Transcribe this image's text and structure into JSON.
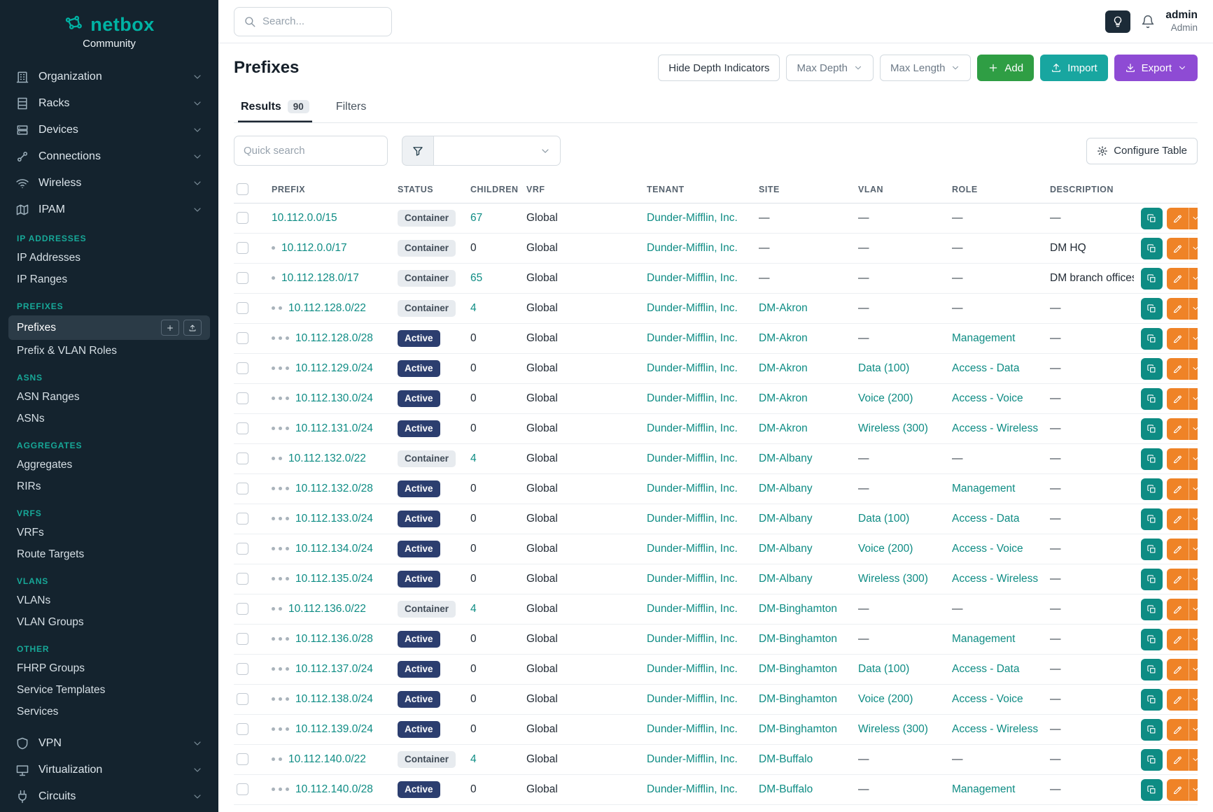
{
  "brand": {
    "name": "netbox",
    "subtitle": "Community"
  },
  "topbar": {
    "search_placeholder": "Search...",
    "user_name": "admin",
    "user_role": "Admin"
  },
  "sidebar": {
    "top_groups": [
      {
        "label": "Organization",
        "icon": "organization-icon"
      },
      {
        "label": "Racks",
        "icon": "racks-icon"
      },
      {
        "label": "Devices",
        "icon": "devices-icon"
      },
      {
        "label": "Connections",
        "icon": "connections-icon"
      },
      {
        "label": "Wireless",
        "icon": "wireless-icon"
      },
      {
        "label": "IPAM",
        "icon": "ipam-icon"
      }
    ],
    "sections": [
      {
        "title": "IP ADDRESSES",
        "items": [
          {
            "label": "IP Addresses",
            "active": false
          },
          {
            "label": "IP Ranges",
            "active": false
          }
        ]
      },
      {
        "title": "PREFIXES",
        "items": [
          {
            "label": "Prefixes",
            "active": true
          },
          {
            "label": "Prefix & VLAN Roles",
            "active": false
          }
        ]
      },
      {
        "title": "ASNS",
        "items": [
          {
            "label": "ASN Ranges",
            "active": false
          },
          {
            "label": "ASNs",
            "active": false
          }
        ]
      },
      {
        "title": "AGGREGATES",
        "items": [
          {
            "label": "Aggregates",
            "active": false
          },
          {
            "label": "RIRs",
            "active": false
          }
        ]
      },
      {
        "title": "VRFS",
        "items": [
          {
            "label": "VRFs",
            "active": false
          },
          {
            "label": "Route Targets",
            "active": false
          }
        ]
      },
      {
        "title": "VLANS",
        "items": [
          {
            "label": "VLANs",
            "active": false
          },
          {
            "label": "VLAN Groups",
            "active": false
          }
        ]
      },
      {
        "title": "OTHER",
        "items": [
          {
            "label": "FHRP Groups",
            "active": false
          },
          {
            "label": "Service Templates",
            "active": false
          },
          {
            "label": "Services",
            "active": false
          }
        ]
      }
    ],
    "bottom_groups": [
      {
        "label": "VPN",
        "icon": "vpn-icon"
      },
      {
        "label": "Virtualization",
        "icon": "virtualization-icon"
      },
      {
        "label": "Circuits",
        "icon": "circuits-icon"
      }
    ]
  },
  "page": {
    "title": "Prefixes",
    "toolbar": {
      "hide_depth_label": "Hide Depth Indicators",
      "max_depth_label": "Max Depth",
      "max_length_label": "Max Length",
      "add_label": "Add",
      "import_label": "Import",
      "export_label": "Export"
    },
    "tabs": [
      {
        "label": "Results",
        "badge": "90",
        "active": true
      },
      {
        "label": "Filters",
        "active": false
      }
    ],
    "quick_search_placeholder": "Quick search",
    "configure_table_label": "Configure Table"
  },
  "table": {
    "columns": [
      "PREFIX",
      "STATUS",
      "CHILDREN",
      "VRF",
      "TENANT",
      "SITE",
      "VLAN",
      "ROLE",
      "DESCRIPTION"
    ],
    "rows": [
      {
        "depth": 0,
        "prefix": "10.112.0.0/15",
        "status": "Container",
        "children": "67",
        "vrf": "Global",
        "tenant": "Dunder-Mifflin, Inc.",
        "site": "—",
        "vlan": "—",
        "role": "—",
        "description": "—"
      },
      {
        "depth": 1,
        "prefix": "10.112.0.0/17",
        "status": "Container",
        "children": "0",
        "vrf": "Global",
        "tenant": "Dunder-Mifflin, Inc.",
        "site": "—",
        "vlan": "—",
        "role": "—",
        "description": "DM HQ"
      },
      {
        "depth": 1,
        "prefix": "10.112.128.0/17",
        "status": "Container",
        "children": "65",
        "vrf": "Global",
        "tenant": "Dunder-Mifflin, Inc.",
        "site": "—",
        "vlan": "—",
        "role": "—",
        "description": "DM branch offices"
      },
      {
        "depth": 2,
        "prefix": "10.112.128.0/22",
        "status": "Container",
        "children": "4",
        "vrf": "Global",
        "tenant": "Dunder-Mifflin, Inc.",
        "site": "DM-Akron",
        "vlan": "—",
        "role": "—",
        "description": "—"
      },
      {
        "depth": 3,
        "prefix": "10.112.128.0/28",
        "status": "Active",
        "children": "0",
        "vrf": "Global",
        "tenant": "Dunder-Mifflin, Inc.",
        "site": "DM-Akron",
        "vlan": "—",
        "role": "Management",
        "description": "—"
      },
      {
        "depth": 3,
        "prefix": "10.112.129.0/24",
        "status": "Active",
        "children": "0",
        "vrf": "Global",
        "tenant": "Dunder-Mifflin, Inc.",
        "site": "DM-Akron",
        "vlan": "Data (100)",
        "role": "Access - Data",
        "description": "—"
      },
      {
        "depth": 3,
        "prefix": "10.112.130.0/24",
        "status": "Active",
        "children": "0",
        "vrf": "Global",
        "tenant": "Dunder-Mifflin, Inc.",
        "site": "DM-Akron",
        "vlan": "Voice (200)",
        "role": "Access - Voice",
        "description": "—"
      },
      {
        "depth": 3,
        "prefix": "10.112.131.0/24",
        "status": "Active",
        "children": "0",
        "vrf": "Global",
        "tenant": "Dunder-Mifflin, Inc.",
        "site": "DM-Akron",
        "vlan": "Wireless (300)",
        "role": "Access - Wireless",
        "description": "—"
      },
      {
        "depth": 2,
        "prefix": "10.112.132.0/22",
        "status": "Container",
        "children": "4",
        "vrf": "Global",
        "tenant": "Dunder-Mifflin, Inc.",
        "site": "DM-Albany",
        "vlan": "—",
        "role": "—",
        "description": "—"
      },
      {
        "depth": 3,
        "prefix": "10.112.132.0/28",
        "status": "Active",
        "children": "0",
        "vrf": "Global",
        "tenant": "Dunder-Mifflin, Inc.",
        "site": "DM-Albany",
        "vlan": "—",
        "role": "Management",
        "description": "—"
      },
      {
        "depth": 3,
        "prefix": "10.112.133.0/24",
        "status": "Active",
        "children": "0",
        "vrf": "Global",
        "tenant": "Dunder-Mifflin, Inc.",
        "site": "DM-Albany",
        "vlan": "Data (100)",
        "role": "Access - Data",
        "description": "—"
      },
      {
        "depth": 3,
        "prefix": "10.112.134.0/24",
        "status": "Active",
        "children": "0",
        "vrf": "Global",
        "tenant": "Dunder-Mifflin, Inc.",
        "site": "DM-Albany",
        "vlan": "Voice (200)",
        "role": "Access - Voice",
        "description": "—"
      },
      {
        "depth": 3,
        "prefix": "10.112.135.0/24",
        "status": "Active",
        "children": "0",
        "vrf": "Global",
        "tenant": "Dunder-Mifflin, Inc.",
        "site": "DM-Albany",
        "vlan": "Wireless (300)",
        "role": "Access - Wireless",
        "description": "—"
      },
      {
        "depth": 2,
        "prefix": "10.112.136.0/22",
        "status": "Container",
        "children": "4",
        "vrf": "Global",
        "tenant": "Dunder-Mifflin, Inc.",
        "site": "DM-Binghamton",
        "vlan": "—",
        "role": "—",
        "description": "—"
      },
      {
        "depth": 3,
        "prefix": "10.112.136.0/28",
        "status": "Active",
        "children": "0",
        "vrf": "Global",
        "tenant": "Dunder-Mifflin, Inc.",
        "site": "DM-Binghamton",
        "vlan": "—",
        "role": "Management",
        "description": "—"
      },
      {
        "depth": 3,
        "prefix": "10.112.137.0/24",
        "status": "Active",
        "children": "0",
        "vrf": "Global",
        "tenant": "Dunder-Mifflin, Inc.",
        "site": "DM-Binghamton",
        "vlan": "Data (100)",
        "role": "Access - Data",
        "description": "—"
      },
      {
        "depth": 3,
        "prefix": "10.112.138.0/24",
        "status": "Active",
        "children": "0",
        "vrf": "Global",
        "tenant": "Dunder-Mifflin, Inc.",
        "site": "DM-Binghamton",
        "vlan": "Voice (200)",
        "role": "Access - Voice",
        "description": "—"
      },
      {
        "depth": 3,
        "prefix": "10.112.139.0/24",
        "status": "Active",
        "children": "0",
        "vrf": "Global",
        "tenant": "Dunder-Mifflin, Inc.",
        "site": "DM-Binghamton",
        "vlan": "Wireless (300)",
        "role": "Access - Wireless",
        "description": "—"
      },
      {
        "depth": 2,
        "prefix": "10.112.140.0/22",
        "status": "Container",
        "children": "4",
        "vrf": "Global",
        "tenant": "Dunder-Mifflin, Inc.",
        "site": "DM-Buffalo",
        "vlan": "—",
        "role": "—",
        "description": "—"
      },
      {
        "depth": 3,
        "prefix": "10.112.140.0/28",
        "status": "Active",
        "children": "0",
        "vrf": "Global",
        "tenant": "Dunder-Mifflin, Inc.",
        "site": "DM-Buffalo",
        "vlan": "—",
        "role": "Management",
        "description": "—"
      }
    ]
  },
  "colors": {
    "accent_teal": "#0e8c84",
    "sidebar_bg": "#14232e",
    "section_title_teal": "#17a898",
    "status_active_bg": "#2c3e6f",
    "status_container_bg": "#e7ebef",
    "add_green": "#2f9e44",
    "import_teal": "#18a6a0",
    "export_purple": "#8e4bd4",
    "edit_orange": "#ef8327"
  }
}
